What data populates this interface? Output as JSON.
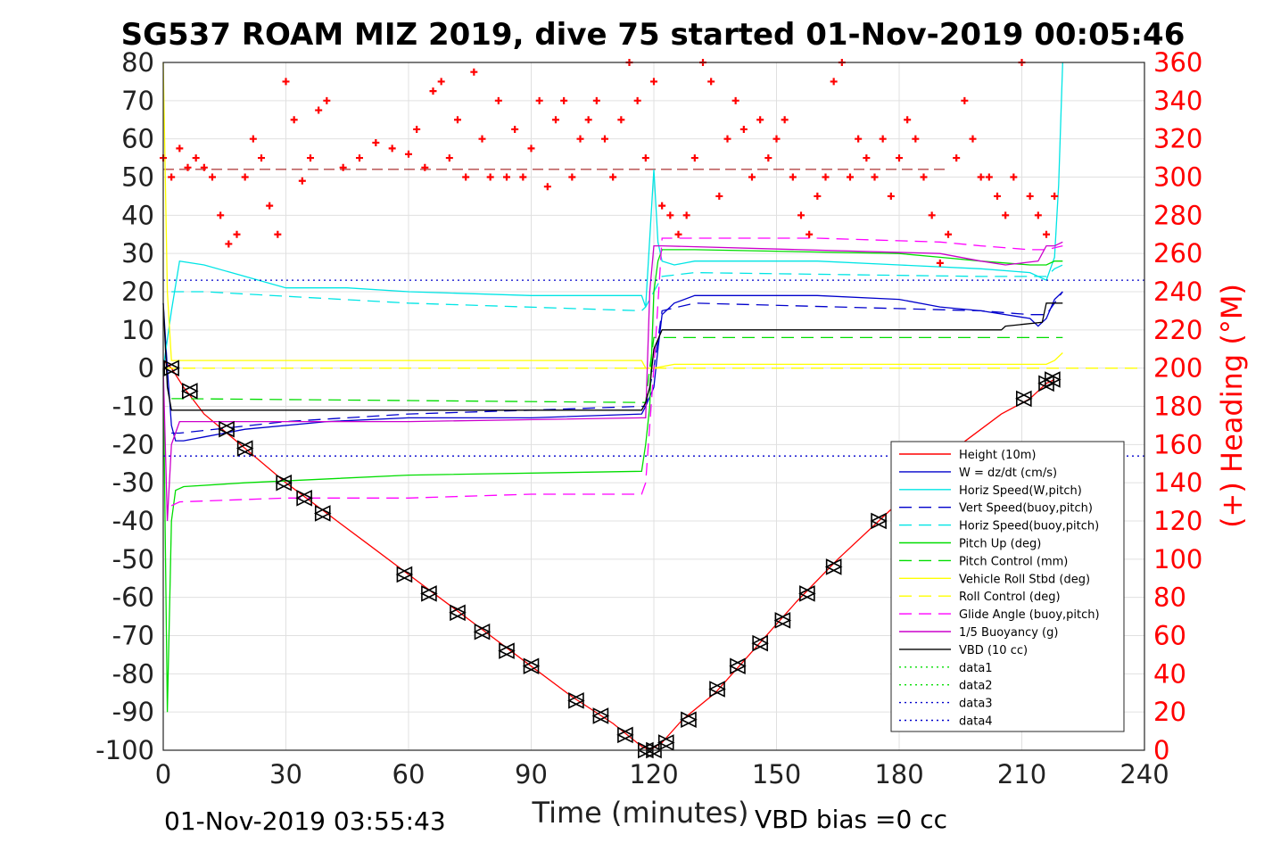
{
  "chart_data": {
    "type": "line",
    "title": "SG537 ROAM MIZ 2019, dive 75 started 01-Nov-2019 00:05:46",
    "xlabel": "Time (minutes)",
    "ylabel_right": "(+) Heading (°M)",
    "footer_left": "01-Nov-2019 03:55:43",
    "footer_right": "VBD bias =0 cc",
    "xlim": [
      0,
      240
    ],
    "ylim": [
      -100,
      80
    ],
    "ylim_right": [
      0,
      360
    ],
    "x_ticks": [
      "0",
      "30",
      "60",
      "90",
      "120",
      "150",
      "180",
      "210",
      "240"
    ],
    "y_ticks": [
      "80",
      "70",
      "60",
      "50",
      "40",
      "30",
      "20",
      "10",
      "0",
      "-10",
      "-20",
      "-30",
      "-40",
      "-50",
      "-60",
      "-70",
      "-80",
      "-90",
      "-100"
    ],
    "y_right_ticks": [
      "360",
      "340",
      "320",
      "300",
      "280",
      "260",
      "240",
      "220",
      "200",
      "180",
      "160",
      "140",
      "120",
      "100",
      "80",
      "60",
      "40",
      "20",
      "0"
    ],
    "grid": true,
    "legend_position": "bottom-right",
    "series": [
      {
        "name": "Height (10m)",
        "color": "#ff0000",
        "style": "solid",
        "x": [
          0,
          1,
          2,
          5,
          10,
          20,
          30,
          40,
          50,
          60,
          70,
          80,
          90,
          100,
          110,
          117,
          119,
          122,
          127,
          135,
          145,
          155,
          165,
          175,
          185,
          195,
          205,
          212,
          216,
          218
        ],
        "y": [
          2,
          1,
          0,
          -5,
          -12,
          -21,
          -30,
          -38,
          -46,
          -54,
          -62,
          -70,
          -78,
          -86,
          -93,
          -99,
          -100,
          -98,
          -92,
          -85,
          -73,
          -61,
          -50,
          -40,
          -30,
          -20,
          -12,
          -8,
          -4,
          -3
        ]
      },
      {
        "name": "W = dz/dt (cm/s)",
        "color": "#0000cc",
        "style": "solid",
        "x": [
          0,
          1,
          2,
          3,
          5,
          10,
          20,
          40,
          60,
          90,
          117,
          118,
          120,
          121,
          122,
          125,
          130,
          160,
          180,
          190,
          200,
          212,
          214,
          216,
          218,
          220
        ],
        "y": [
          17,
          0,
          -15,
          -19,
          -19,
          -18,
          -16,
          -14,
          -13,
          -13,
          -12,
          -10,
          -5,
          5,
          14,
          17,
          19,
          19,
          18,
          16,
          15,
          13,
          11,
          13,
          18,
          20
        ]
      },
      {
        "name": "Horiz Speed(W,pitch)",
        "color": "#00e5e5",
        "style": "solid",
        "x": [
          0,
          2,
          4,
          10,
          20,
          30,
          45,
          60,
          90,
          117,
          118,
          120,
          121,
          122,
          125,
          130,
          160,
          180,
          200,
          212,
          216,
          218,
          219,
          220
        ],
        "y": [
          0,
          15,
          28,
          27,
          24,
          21,
          21,
          20,
          19,
          19,
          16,
          52,
          33,
          28,
          27,
          28,
          28,
          27,
          26,
          25,
          23,
          29,
          48,
          80
        ]
      },
      {
        "name": "Vert Speed(buoy,pitch)",
        "color": "#0000cc",
        "style": "dash",
        "x": [
          2,
          4,
          30,
          60,
          90,
          117,
          118,
          120,
          122,
          130,
          200,
          212,
          216,
          218,
          220
        ],
        "y": [
          -17,
          -17,
          -14,
          -12,
          -11,
          -10,
          -10,
          0,
          15,
          17,
          15,
          14,
          14,
          17,
          20
        ]
      },
      {
        "name": "Horiz Speed(buoy,pitch)",
        "color": "#00e5e5",
        "style": "dash",
        "x": [
          2,
          10,
          60,
          117,
          118,
          120,
          122,
          130,
          200,
          216,
          218,
          220
        ],
        "y": [
          20,
          20,
          17,
          15,
          16,
          20,
          24,
          25,
          24,
          24,
          26,
          27
        ]
      },
      {
        "name": "Pitch Up (deg)",
        "color": "#00dd00",
        "style": "solid",
        "x": [
          0,
          1,
          2,
          3,
          5,
          20,
          60,
          117,
          118,
          119,
          120,
          121,
          122,
          130,
          180,
          190,
          200,
          212,
          216,
          218,
          220
        ],
        "y": [
          0,
          -90,
          -40,
          -32,
          -31,
          -30,
          -28,
          -27,
          -20,
          -10,
          20,
          28,
          31,
          31,
          30,
          29,
          28,
          27,
          27,
          28,
          28
        ]
      },
      {
        "name": "Pitch Control (mm)",
        "color": "#00dd00",
        "style": "dash",
        "x": [
          2,
          4,
          117,
          118,
          119,
          120,
          122,
          200,
          216,
          220
        ],
        "y": [
          -8,
          -8,
          -9,
          -9,
          0,
          8,
          8,
          8,
          8,
          8
        ]
      },
      {
        "name": "Vehicle Roll Stbd (deg)",
        "color": "#ffff00",
        "style": "solid",
        "x": [
          0,
          1,
          2,
          3,
          5,
          30,
          60,
          90,
          117,
          118,
          120,
          125,
          150,
          180,
          200,
          212,
          216,
          218,
          220
        ],
        "y": [
          80,
          20,
          2,
          2,
          2,
          2,
          2,
          2,
          2,
          0,
          0,
          1,
          1,
          1,
          1,
          1,
          1,
          2,
          4
        ]
      },
      {
        "name": "Roll Control (deg)",
        "color": "#ffff00",
        "style": "dash",
        "x": [
          0,
          240
        ],
        "y": [
          0,
          0
        ]
      },
      {
        "name": "Glide Angle (buoy,pitch)",
        "color": "#ff00ff",
        "style": "dash",
        "x": [
          2,
          4,
          30,
          60,
          90,
          117,
          118,
          120,
          122,
          130,
          160,
          190,
          200,
          212,
          216,
          220
        ],
        "y": [
          -36,
          -35,
          -34,
          -34,
          -33,
          -33,
          -30,
          0,
          34,
          34,
          34,
          33,
          32,
          31,
          31,
          32
        ]
      },
      {
        "name": "1/5 Buoyancy (g)",
        "color": "#cc00cc",
        "style": "solid",
        "x": [
          0,
          1,
          2,
          4,
          10,
          30,
          60,
          117,
          118,
          119,
          120,
          122,
          190,
          200,
          206,
          214,
          216,
          218,
          220
        ],
        "y": [
          0,
          -40,
          -20,
          -14,
          -14,
          -14,
          -14,
          -13,
          -13,
          20,
          32,
          32,
          30,
          28,
          27,
          28,
          32,
          32,
          33
        ]
      },
      {
        "name": "VBD (10 cc)",
        "color": "#000000",
        "style": "solid",
        "x": [
          0,
          1,
          2,
          3,
          117,
          118,
          119,
          120,
          122,
          205,
          206,
          215,
          216,
          218,
          220
        ],
        "y": [
          17,
          -5,
          -11,
          -11,
          -11,
          -9,
          -5,
          5,
          10,
          10,
          11,
          12,
          17,
          17,
          17
        ]
      },
      {
        "name": "data1",
        "color": "#00dd00",
        "style": "dot",
        "x": [],
        "y": []
      },
      {
        "name": "data2",
        "color": "#00dd00",
        "style": "dot",
        "x": [],
        "y": []
      },
      {
        "name": "data3",
        "color": "#0000cc",
        "style": "dot",
        "x": [
          0,
          240
        ],
        "y": [
          23,
          23
        ]
      },
      {
        "name": "data4",
        "color": "#0000cc",
        "style": "dot",
        "x": [
          0,
          240
        ],
        "y": [
          -23,
          -23
        ]
      }
    ],
    "heading": {
      "axis": "right",
      "color": "#ff0000",
      "marker": "+",
      "mean_heading": 304,
      "x": [
        0,
        2,
        4,
        6,
        8,
        10,
        12,
        14,
        16,
        18,
        20,
        22,
        24,
        26,
        28,
        30,
        32,
        34,
        36,
        38,
        40,
        44,
        48,
        52,
        56,
        60,
        62,
        64,
        66,
        68,
        70,
        72,
        74,
        76,
        78,
        80,
        82,
        84,
        86,
        88,
        90,
        92,
        94,
        96,
        98,
        100,
        102,
        104,
        106,
        108,
        110,
        112,
        114,
        116,
        118,
        120,
        122,
        124,
        126,
        128,
        130,
        132,
        134,
        136,
        138,
        140,
        142,
        144,
        146,
        148,
        150,
        152,
        154,
        156,
        158,
        160,
        162,
        164,
        166,
        168,
        170,
        172,
        174,
        176,
        178,
        180,
        182,
        184,
        186,
        188,
        190,
        192,
        194,
        196,
        198,
        200,
        202,
        204,
        206,
        208,
        210,
        212,
        214,
        216,
        218
      ],
      "y": [
        310,
        300,
        315,
        305,
        310,
        305,
        300,
        280,
        265,
        270,
        300,
        320,
        310,
        285,
        270,
        350,
        330,
        298,
        310,
        335,
        340,
        305,
        310,
        318,
        315,
        312,
        325,
        305,
        345,
        350,
        310,
        330,
        300,
        355,
        320,
        300,
        340,
        300,
        325,
        300,
        315,
        340,
        295,
        330,
        340,
        300,
        320,
        330,
        340,
        320,
        300,
        330,
        360,
        340,
        310,
        350,
        285,
        280,
        270,
        280,
        310,
        360,
        350,
        290,
        320,
        340,
        325,
        300,
        330,
        310,
        320,
        330,
        300,
        280,
        270,
        290,
        300,
        350,
        360,
        300,
        320,
        310,
        300,
        320,
        290,
        310,
        330,
        320,
        300,
        280,
        255,
        270,
        310,
        340,
        320,
        300,
        300,
        290,
        280,
        300,
        360,
        290,
        280,
        270,
        290
      ]
    },
    "depth_markers": [
      {
        "x": 2,
        "y": 0
      },
      {
        "x": 6.5,
        "y": -6
      },
      {
        "x": 15.5,
        "y": -16
      },
      {
        "x": 20,
        "y": -21
      },
      {
        "x": 29.5,
        "y": -30
      },
      {
        "x": 34.5,
        "y": -34
      },
      {
        "x": 39,
        "y": -38
      },
      {
        "x": 59,
        "y": -54
      },
      {
        "x": 65,
        "y": -59
      },
      {
        "x": 72,
        "y": -64
      },
      {
        "x": 78,
        "y": -69
      },
      {
        "x": 84,
        "y": -74
      },
      {
        "x": 90,
        "y": -78
      },
      {
        "x": 101,
        "y": -87
      },
      {
        "x": 107,
        "y": -91
      },
      {
        "x": 113,
        "y": -96
      },
      {
        "x": 118,
        "y": -100
      },
      {
        "x": 120,
        "y": -100
      },
      {
        "x": 123,
        "y": -98
      },
      {
        "x": 128.5,
        "y": -92
      },
      {
        "x": 135.5,
        "y": -84
      },
      {
        "x": 140.5,
        "y": -78
      },
      {
        "x": 146,
        "y": -72
      },
      {
        "x": 151.5,
        "y": -66
      },
      {
        "x": 157.5,
        "y": -59
      },
      {
        "x": 164,
        "y": -52
      },
      {
        "x": 175,
        "y": -40
      },
      {
        "x": 210.5,
        "y": -8
      },
      {
        "x": 216,
        "y": -4
      },
      {
        "x": 217.5,
        "y": -3
      }
    ]
  }
}
